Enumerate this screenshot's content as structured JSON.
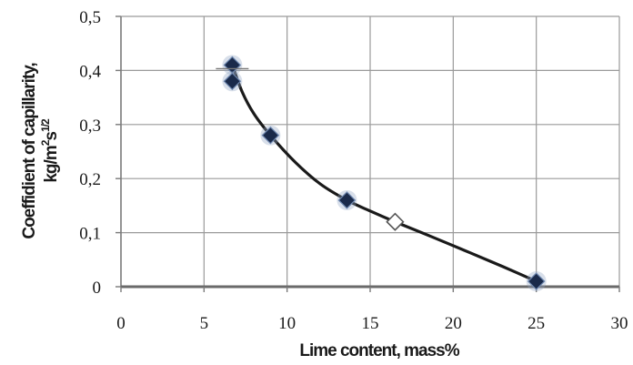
{
  "chart_data": {
    "type": "scatter",
    "xlabel": "Lime content, mass%",
    "ylabel_line1": "Coeffidient of capillarity,",
    "ylabel_line2_base": "kg/m",
    "ylabel_line2_sup1": "2",
    "ylabel_line2_s": "s",
    "ylabel_line2_sup2": "1/2",
    "xlim": [
      0,
      30
    ],
    "ylim": [
      0,
      0.5
    ],
    "x_ticks": [
      0,
      5,
      10,
      15,
      20,
      25,
      30
    ],
    "x_tick_labels": [
      "0",
      "5",
      "10",
      "15",
      "20",
      "25",
      "30"
    ],
    "y_ticks": [
      0,
      0.1,
      0.2,
      0.3,
      0.4,
      0.5
    ],
    "y_tick_labels": [
      "0",
      "0,1",
      "0,2",
      "0,3",
      "0,4",
      "0,5"
    ],
    "grid": true,
    "series": [
      {
        "marker": "filled-diamond",
        "color": "#1a2a4a",
        "x": [
          6.7,
          6.7,
          9.0,
          13.6,
          25.0
        ],
        "y": [
          0.41,
          0.38,
          0.28,
          0.16,
          0.01
        ]
      },
      {
        "marker": "open-diamond",
        "color": "#ffffff",
        "x": [
          16.5
        ],
        "y": [
          0.12
        ]
      }
    ],
    "trend_curve": {
      "x": [
        6.7,
        7.3,
        8.0,
        9.0,
        10.5,
        12.0,
        13.6,
        15.0,
        16.5,
        18.5,
        21.0,
        23.0,
        25.0
      ],
      "y": [
        0.41,
        0.36,
        0.32,
        0.28,
        0.23,
        0.19,
        0.16,
        0.14,
        0.12,
        0.095,
        0.063,
        0.037,
        0.01
      ]
    }
  }
}
